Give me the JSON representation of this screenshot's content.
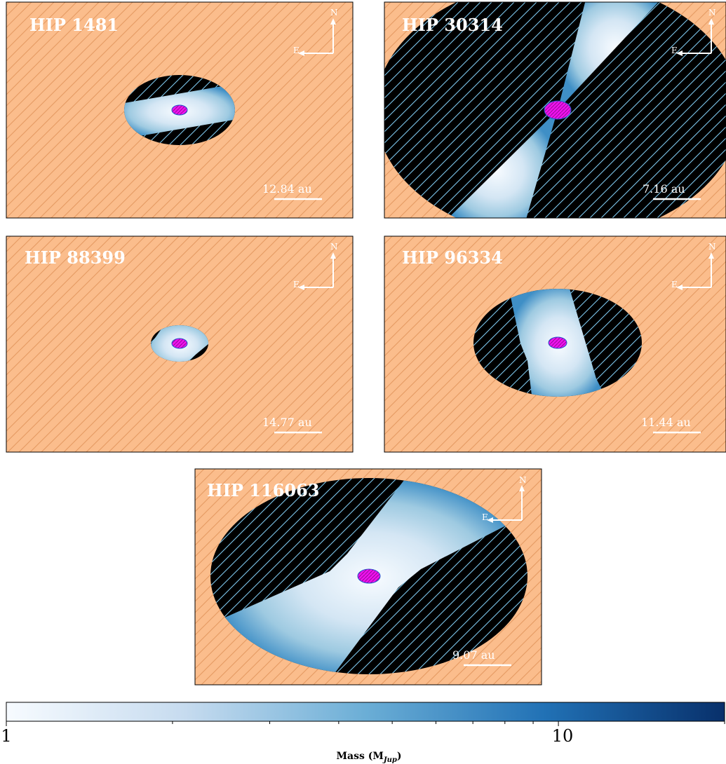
{
  "colors": {
    "background_fill": "#fbbd8c",
    "background_hatch": "#e59a62",
    "excluded_fill": "#000000",
    "excluded_hatch": "#7ec8ef",
    "star_fill": "#ee11ee",
    "colormap": [
      "#f7fbff",
      "#c6dbef",
      "#6baed6",
      "#2171b5",
      "#08306b"
    ]
  },
  "panels": [
    {
      "name": "HIP 1481",
      "scale_label": "12.84 au",
      "north_label": "N",
      "east_label": "E"
    },
    {
      "name": "HIP 30314",
      "scale_label": "7.16 au",
      "north_label": "N",
      "east_label": "E"
    },
    {
      "name": "HIP 88399",
      "scale_label": "14.77 au",
      "north_label": "N",
      "east_label": "E"
    },
    {
      "name": "HIP 96334",
      "scale_label": "11.44 au",
      "north_label": "N",
      "east_label": "E"
    },
    {
      "name": "HIP 116063",
      "scale_label": "9.07 au",
      "north_label": "N",
      "east_label": "E"
    }
  ],
  "colorbar": {
    "label": "Mass (M",
    "label_subscript": "Jup",
    "label_close": ")",
    "scale": "log",
    "range": [
      1,
      20
    ],
    "tick_labels": [
      {
        "value": 1,
        "text": "1"
      },
      {
        "value": 10,
        "text": "10"
      }
    ],
    "minor_ticks": [
      2,
      3,
      4,
      5,
      6,
      7,
      8,
      9,
      20
    ]
  }
}
